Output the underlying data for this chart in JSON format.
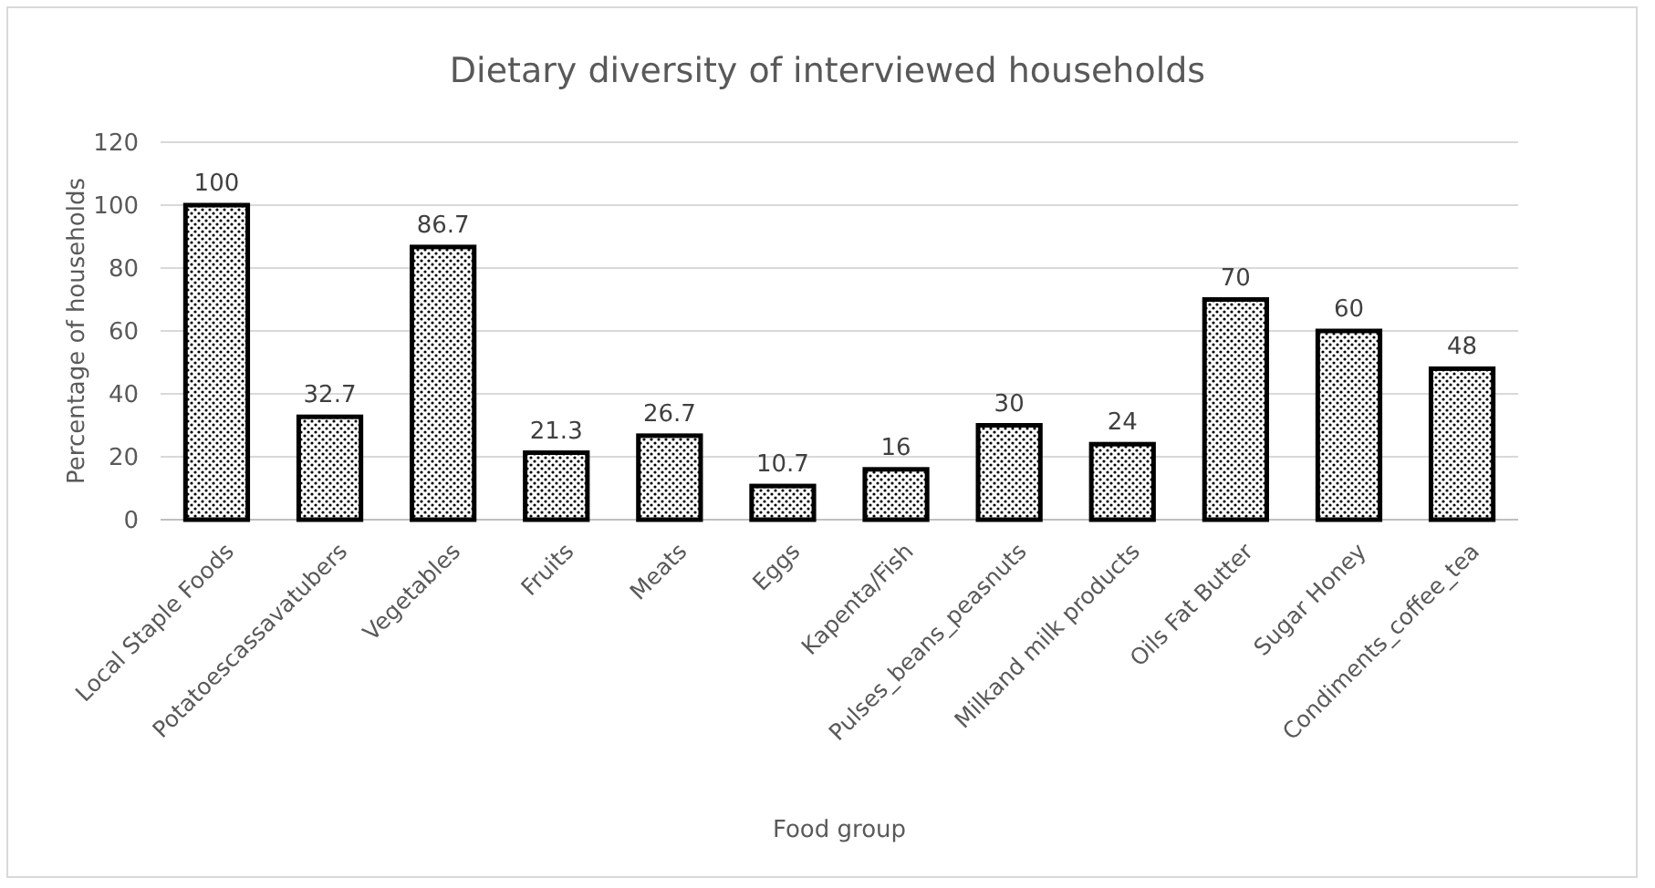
{
  "chart_data": {
    "type": "bar",
    "title": "Dietary diversity of interviewed households",
    "xlabel": "Food group",
    "ylabel": "Percentage of households",
    "categories": [
      "Local Staple Foods",
      "Potatoescassavatubers",
      "Vegetables",
      "Fruits",
      "Meats",
      "Eggs",
      "Kapenta/Fish",
      "Pulses_beans_peasnuts",
      "Milkand milk products",
      "Oils Fat Butter",
      "Sugar Honey",
      "Condiments_coffee_tea"
    ],
    "values": [
      100,
      32.7,
      86.7,
      21.3,
      26.7,
      10.7,
      16,
      30,
      24,
      70,
      60,
      48
    ],
    "color": "#000000",
    "ylim": [
      0,
      120
    ],
    "yticks": [
      0,
      20,
      40,
      60,
      80,
      100,
      120
    ],
    "grid": "y",
    "data_labels": true
  }
}
